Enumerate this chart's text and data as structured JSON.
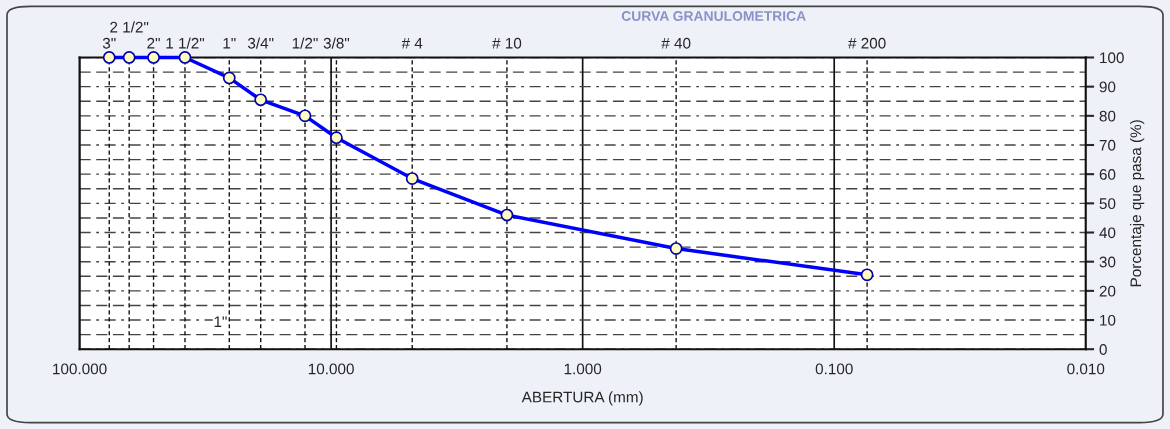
{
  "chart_data": {
    "type": "line",
    "title": "CURVA GRANULOMETRICA",
    "xlabel": "ABERTURA (mm)",
    "ylabel": "Porcentaje que pasa (%)",
    "x": [
      76.2,
      63.5,
      50.8,
      38.1,
      25.4,
      19.05,
      12.7,
      9.525,
      4.76,
      2.0,
      0.425,
      0.074
    ],
    "series": [
      {
        "color": "#0000ff",
        "values": [
          100,
          100,
          100,
          100,
          93,
          85.5,
          80,
          72.5,
          58.5,
          46,
          34.5,
          25.5
        ]
      }
    ],
    "log": "x",
    "xlim": [
      100,
      0.01
    ],
    "xticks": [
      {
        "value": 100,
        "label": "100.000"
      },
      {
        "value": 10,
        "label": "10.000"
      },
      {
        "value": 1,
        "label": "1.000"
      },
      {
        "value": 0.1,
        "label": "0.100"
      },
      {
        "value": 0.01,
        "label": "0.010"
      }
    ],
    "ylim": [
      0,
      100
    ],
    "yticks": [
      0,
      10,
      20,
      30,
      40,
      50,
      60,
      70,
      80,
      90,
      100
    ],
    "grid": true,
    "marker": "circle",
    "line_style": "solid",
    "ref_lines": [
      {
        "axis": "x",
        "value": 76.2
      },
      {
        "axis": "x",
        "value": 63.5
      },
      {
        "axis": "x",
        "value": 50.8
      },
      {
        "axis": "x",
        "value": 38.1
      },
      {
        "axis": "x",
        "value": 25.4
      },
      {
        "axis": "x",
        "value": 19.05
      },
      {
        "axis": "x",
        "value": 12.7
      },
      {
        "axis": "x",
        "value": 9.525
      },
      {
        "axis": "x",
        "value": 4.76
      },
      {
        "axis": "x",
        "value": 2.0
      },
      {
        "axis": "x",
        "value": 0.425
      },
      {
        "axis": "x",
        "value": 0.074
      }
    ],
    "annotations": [
      "3\"",
      "2 1/2\"",
      "2\"",
      "1 1/2\"",
      "1\"",
      "3/4\"",
      "1/2\"",
      "3/8\"",
      "# 4",
      "# 10",
      "# 40",
      "# 200",
      "1\""
    ]
  }
}
